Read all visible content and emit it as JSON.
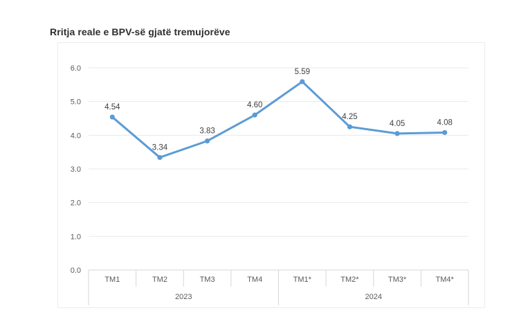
{
  "title": "Rritja reale e BPV-së gjatë tremujorëve",
  "chart_data": {
    "type": "line",
    "title": "Rritja reale e BPV-së gjatë tremujorëve",
    "categories": [
      "TM1",
      "TM2",
      "TM3",
      "TM4",
      "TM1*",
      "TM2*",
      "TM3*",
      "TM4*"
    ],
    "group_labels": [
      {
        "label": "2023",
        "span": 4
      },
      {
        "label": "2024",
        "span": 4
      }
    ],
    "series": [
      {
        "values": [
          4.54,
          3.34,
          3.83,
          4.6,
          5.59,
          4.25,
          4.05,
          4.08
        ]
      }
    ],
    "data_labels": [
      "4.54",
      "3.34",
      "3.83",
      "4.60",
      "5.59",
      "4.25",
      "4.05",
      "4.08"
    ],
    "ylim": [
      0,
      6
    ],
    "yticks": [
      "0.0",
      "1.0",
      "2.0",
      "3.0",
      "4.0",
      "5.0",
      "6.0"
    ],
    "grid": true,
    "legend": "none",
    "colors": {
      "line": "#5b9bd5",
      "marker": "#5b9bd5",
      "data_label": "#3f3f3f",
      "axis_label": "#595959",
      "gridline": "#e9e9e9",
      "axis_line": "#d6d6d6",
      "frame": "#ececec"
    }
  }
}
